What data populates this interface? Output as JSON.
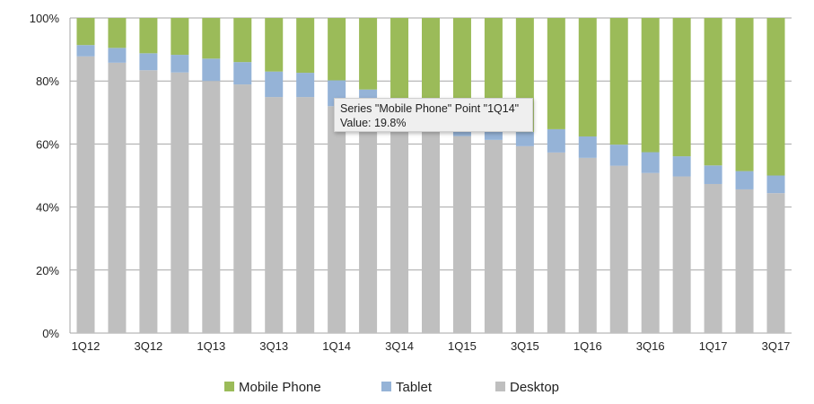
{
  "chart_data": {
    "type": "bar",
    "stacked": "percent",
    "categories": [
      "1Q12",
      "2Q12",
      "3Q12",
      "4Q12",
      "1Q13",
      "2Q13",
      "3Q13",
      "4Q13",
      "1Q14",
      "2Q14",
      "3Q14",
      "4Q14",
      "1Q15",
      "2Q15",
      "3Q15",
      "4Q15",
      "1Q16",
      "2Q16",
      "3Q16",
      "4Q16",
      "1Q17",
      "2Q17",
      "3Q17"
    ],
    "x_tick_labels": [
      "1Q12",
      "3Q12",
      "1Q13",
      "3Q13",
      "1Q14",
      "3Q14",
      "1Q15",
      "3Q15",
      "1Q16",
      "3Q16",
      "1Q17",
      "3Q17"
    ],
    "y_tick_labels": [
      "0%",
      "20%",
      "40%",
      "60%",
      "80%",
      "100%"
    ],
    "ylim": [
      0,
      100
    ],
    "grid": true,
    "legend_placement": "bottom",
    "series": [
      {
        "name": "Desktop",
        "color": "#BFBFBF",
        "values": [
          87.8,
          85.8,
          83.4,
          82.7,
          80.0,
          78.9,
          74.9,
          74.9,
          72.0,
          71.0,
          69.0,
          66.0,
          62.5,
          61.3,
          59.3,
          57.3,
          55.6,
          53.1,
          50.8,
          49.7,
          47.3,
          45.6,
          44.4
        ]
      },
      {
        "name": "Tablet",
        "color": "#95B3D7",
        "values": [
          3.6,
          4.7,
          5.4,
          5.6,
          7.1,
          7.1,
          8.1,
          7.7,
          8.2,
          6.3,
          5.0,
          5.0,
          4.0,
          4.0,
          4.5,
          7.4,
          6.8,
          6.7,
          6.6,
          6.4,
          5.9,
          5.8,
          5.6
        ]
      },
      {
        "name": "Mobile Phone",
        "color": "#9BBB59",
        "values": [
          8.6,
          9.5,
          11.2,
          11.7,
          12.9,
          14.0,
          17.0,
          17.4,
          19.8,
          22.7,
          26.0,
          29.0,
          33.5,
          34.7,
          36.2,
          35.3,
          37.6,
          40.2,
          42.6,
          43.9,
          46.8,
          48.6,
          50.0
        ]
      }
    ],
    "legend": [
      "Mobile Phone",
      "Tablet",
      "Desktop"
    ],
    "tooltip": {
      "line1": "Series \"Mobile Phone\" Point \"1Q14\"",
      "line2": "Value: 19.8%"
    }
  }
}
